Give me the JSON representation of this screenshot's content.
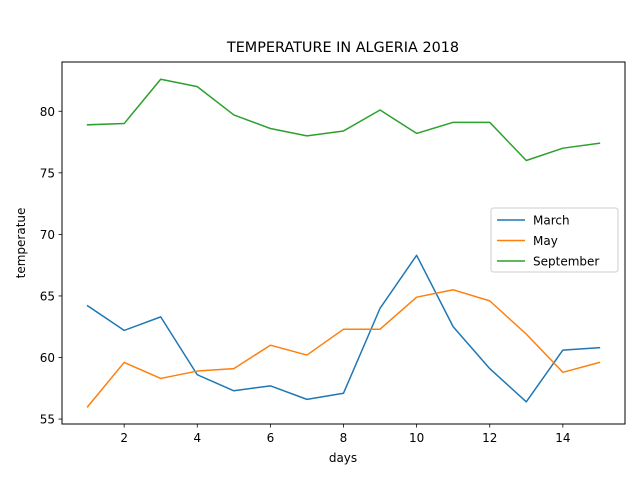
{
  "chart_data": {
    "type": "line",
    "title": "TEMPERATURE IN ALGERIA 2018",
    "xlabel": "days",
    "ylabel": "temperatue",
    "x": [
      1,
      2,
      3,
      4,
      5,
      6,
      7,
      8,
      9,
      10,
      11,
      12,
      13,
      14,
      15
    ],
    "xlim": [
      0.3,
      15.7
    ],
    "ylim": [
      54.6,
      84.0
    ],
    "xticks": [
      2,
      4,
      6,
      8,
      10,
      12,
      14
    ],
    "yticks": [
      55,
      60,
      65,
      70,
      75,
      80
    ],
    "grid": false,
    "legend_position": "center-right",
    "series": [
      {
        "name": "March",
        "color": "#1f77b4",
        "values": [
          64.2,
          62.2,
          63.3,
          58.6,
          57.3,
          57.7,
          56.6,
          57.1,
          64.0,
          68.3,
          62.5,
          59.1,
          56.4,
          60.6,
          60.8
        ]
      },
      {
        "name": "May",
        "color": "#ff7f0e",
        "values": [
          56.0,
          59.6,
          58.3,
          58.9,
          59.1,
          61.0,
          60.2,
          62.3,
          62.3,
          64.9,
          65.5,
          64.6,
          61.9,
          58.8,
          59.6
        ]
      },
      {
        "name": "September",
        "color": "#2ca02c",
        "values": [
          78.9,
          79.0,
          82.6,
          82.0,
          79.7,
          78.6,
          78.0,
          78.4,
          80.1,
          78.2,
          79.1,
          79.1,
          76.0,
          77.0,
          77.4
        ]
      }
    ]
  }
}
